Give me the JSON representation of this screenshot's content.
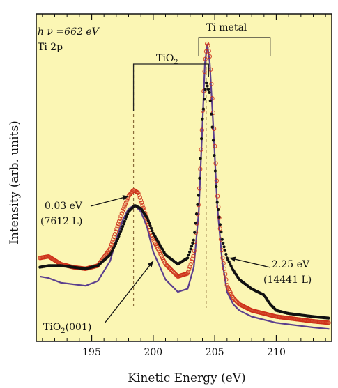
{
  "chart_data": {
    "type": "scatter",
    "xlabel": "Kinetic Energy (eV)",
    "ylabel": "Intensity (arb. units)",
    "xlim": [
      190.5,
      214.5
    ],
    "ylim": [
      0,
      1.06
    ],
    "x_ticks": [
      195,
      200,
      205,
      210
    ],
    "x_tick_labels": [
      "195",
      "200",
      "205",
      "210"
    ],
    "y_ticks_labeled": false,
    "grid": false,
    "background_color": "#fbf6b4",
    "annotations": {
      "photon_energy": "h ν =662 eV",
      "core_level": "Ti 2p",
      "bracket_tio2": "TiO",
      "bracket_tio2_subscript": "2",
      "bracket_ti_metal": "Ti metal",
      "label_red": "0.03 eV",
      "label_red_dose": "(7612 L)",
      "label_black": "2.25 eV",
      "label_black_dose": "(14441 L)",
      "label_purple_prefix": "TiO",
      "label_purple_subscript": "2",
      "label_purple_suffix": "(001)"
    },
    "dashed_reference_lines_x": [
      198.4,
      204.3
    ],
    "series": [
      {
        "color": "#cc2e17",
        "marker": "open-circle",
        "x": [
          190.8,
          191.5,
          192.5,
          193.5,
          194.5,
          195.5,
          196.5,
          197.0,
          197.5,
          198.0,
          198.4,
          198.8,
          199.3,
          200.0,
          201.0,
          202.0,
          202.8,
          203.3,
          203.7,
          204.0,
          204.2,
          204.4,
          204.6,
          204.9,
          205.2,
          205.6,
          206.0,
          206.5,
          207.0,
          208.0,
          209.0,
          210.0,
          211.0,
          212.0,
          213.0,
          214.3
        ],
        "y": [
          0.27,
          0.275,
          0.25,
          0.24,
          0.235,
          0.245,
          0.3,
          0.36,
          0.42,
          0.47,
          0.49,
          0.48,
          0.42,
          0.33,
          0.25,
          0.21,
          0.22,
          0.28,
          0.45,
          0.72,
          0.9,
          0.97,
          0.92,
          0.72,
          0.48,
          0.28,
          0.18,
          0.14,
          0.12,
          0.1,
          0.09,
          0.08,
          0.075,
          0.07,
          0.065,
          0.06
        ]
      },
      {
        "color": "#111111",
        "marker": "filled-circle",
        "x": [
          190.8,
          191.5,
          192.5,
          193.5,
          194.5,
          195.5,
          196.5,
          197.0,
          197.5,
          198.0,
          198.5,
          199.0,
          199.5,
          200.0,
          201.0,
          202.0,
          202.8,
          203.3,
          203.7,
          204.0,
          204.3,
          204.6,
          204.9,
          205.2,
          205.6,
          206.0,
          206.5,
          207.0,
          208.0,
          209.0,
          209.5,
          210.0,
          211.0,
          212.0,
          213.0,
          214.3
        ],
        "y": [
          0.24,
          0.245,
          0.245,
          0.24,
          0.235,
          0.245,
          0.28,
          0.32,
          0.37,
          0.42,
          0.44,
          0.43,
          0.4,
          0.35,
          0.28,
          0.25,
          0.27,
          0.33,
          0.48,
          0.72,
          0.84,
          0.8,
          0.64,
          0.45,
          0.33,
          0.27,
          0.23,
          0.2,
          0.17,
          0.15,
          0.12,
          0.1,
          0.09,
          0.085,
          0.08,
          0.075
        ]
      },
      {
        "color": "#5b3f8e",
        "marker": "line",
        "x": [
          190.8,
          191.5,
          192.5,
          193.5,
          194.5,
          195.5,
          196.5,
          197.0,
          197.5,
          198.0,
          198.5,
          199.0,
          199.5,
          200.0,
          201.0,
          202.0,
          202.8,
          203.3,
          203.7,
          204.0,
          204.2,
          204.4,
          204.6,
          204.9,
          205.2,
          205.6,
          206.0,
          206.5,
          207.0,
          208.0,
          209.0,
          210.0,
          211.0,
          212.0,
          213.0,
          214.3
        ],
        "y": [
          0.21,
          0.205,
          0.19,
          0.185,
          0.18,
          0.195,
          0.26,
          0.33,
          0.39,
          0.43,
          0.44,
          0.42,
          0.37,
          0.29,
          0.2,
          0.16,
          0.17,
          0.24,
          0.42,
          0.7,
          0.9,
          0.96,
          0.9,
          0.68,
          0.44,
          0.26,
          0.16,
          0.12,
          0.1,
          0.08,
          0.07,
          0.06,
          0.055,
          0.05,
          0.045,
          0.04
        ]
      }
    ]
  }
}
